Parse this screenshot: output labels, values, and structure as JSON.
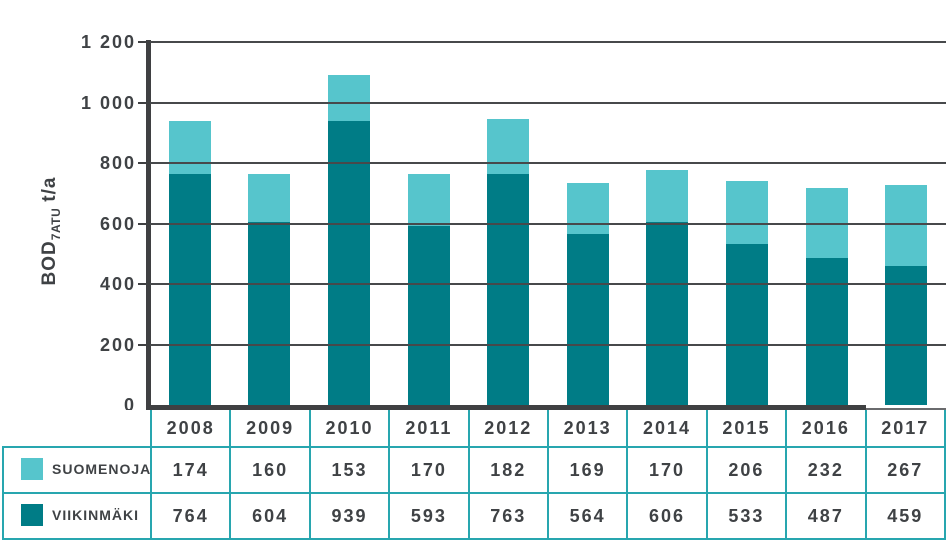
{
  "colors": {
    "table_border": "#28a6af",
    "axis": "#3f4042",
    "grid": "#47494b",
    "text": "#3f4245"
  },
  "chart_data": {
    "type": "bar",
    "stacked": true,
    "title": "",
    "ylabel_main": "BOD",
    "ylabel_sub": "7ATU",
    "ylabel_unit": "t/a",
    "xlabel": "",
    "categories": [
      "2008",
      "2009",
      "2010",
      "2011",
      "2012",
      "2013",
      "2014",
      "2015",
      "2016",
      "2017"
    ],
    "series": [
      {
        "name": "SUOMENOJA",
        "color": "#56c5cc",
        "stack_position": "top",
        "values": [
          174,
          160,
          153,
          170,
          182,
          169,
          170,
          206,
          232,
          267
        ]
      },
      {
        "name": "VIIKINMÄKI",
        "color": "#007c86",
        "stack_position": "bottom",
        "values": [
          764,
          604,
          939,
          593,
          763,
          564,
          606,
          533,
          487,
          459
        ]
      }
    ],
    "ylim": [
      0,
      1200
    ],
    "yticks": [
      {
        "value": 0,
        "label": "0"
      },
      {
        "value": 200,
        "label": "200"
      },
      {
        "value": 400,
        "label": "400"
      },
      {
        "value": 600,
        "label": "600"
      },
      {
        "value": 800,
        "label": "800"
      },
      {
        "value": 1000,
        "label": "1 000"
      },
      {
        "value": 1200,
        "label": "1 200"
      }
    ],
    "grid": true,
    "legend_position": "table-left"
  }
}
